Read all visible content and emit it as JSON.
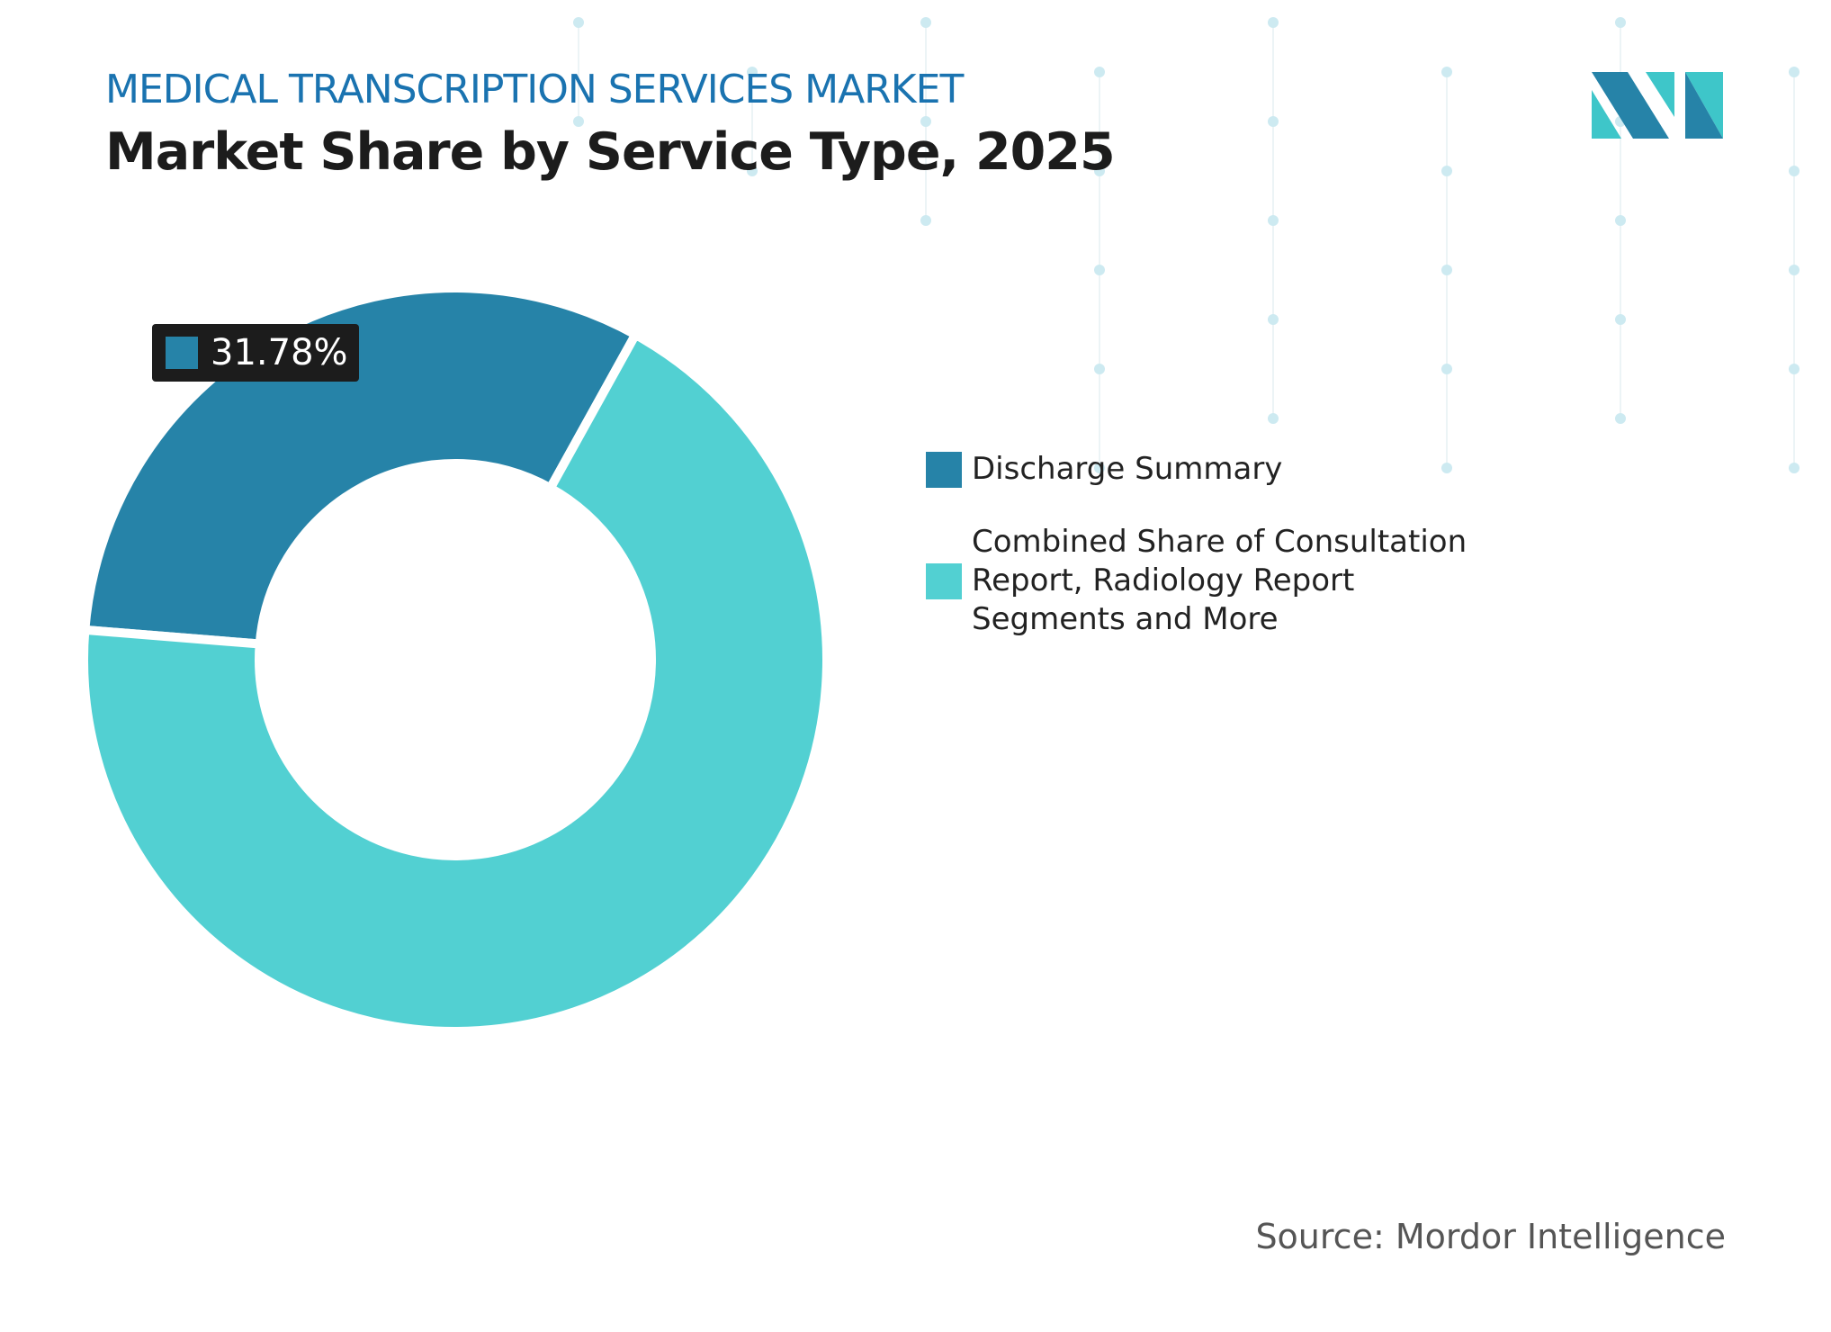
{
  "header": {
    "subtitle": "MEDICAL TRANSCRIPTION SERVICES MARKET",
    "title": "Market Share by Service Type, 2025"
  },
  "chart_data": {
    "type": "pie",
    "donut": true,
    "title": "Market Share by Service Type, 2025",
    "categories": [
      "Discharge Summary",
      "Combined Share of Consultation Report, Radiology Report Segments and More"
    ],
    "values": [
      31.78,
      68.22
    ],
    "colors": [
      "#2683a8",
      "#52d0d2"
    ],
    "data_labels": [
      {
        "category": "Discharge Summary",
        "text": "31.78%"
      }
    ],
    "legend_position": "right"
  },
  "source": "Source: Mordor Intelligence",
  "logo": {
    "text": "MI",
    "colors": [
      "#2683a8",
      "#3ec6c9"
    ]
  }
}
